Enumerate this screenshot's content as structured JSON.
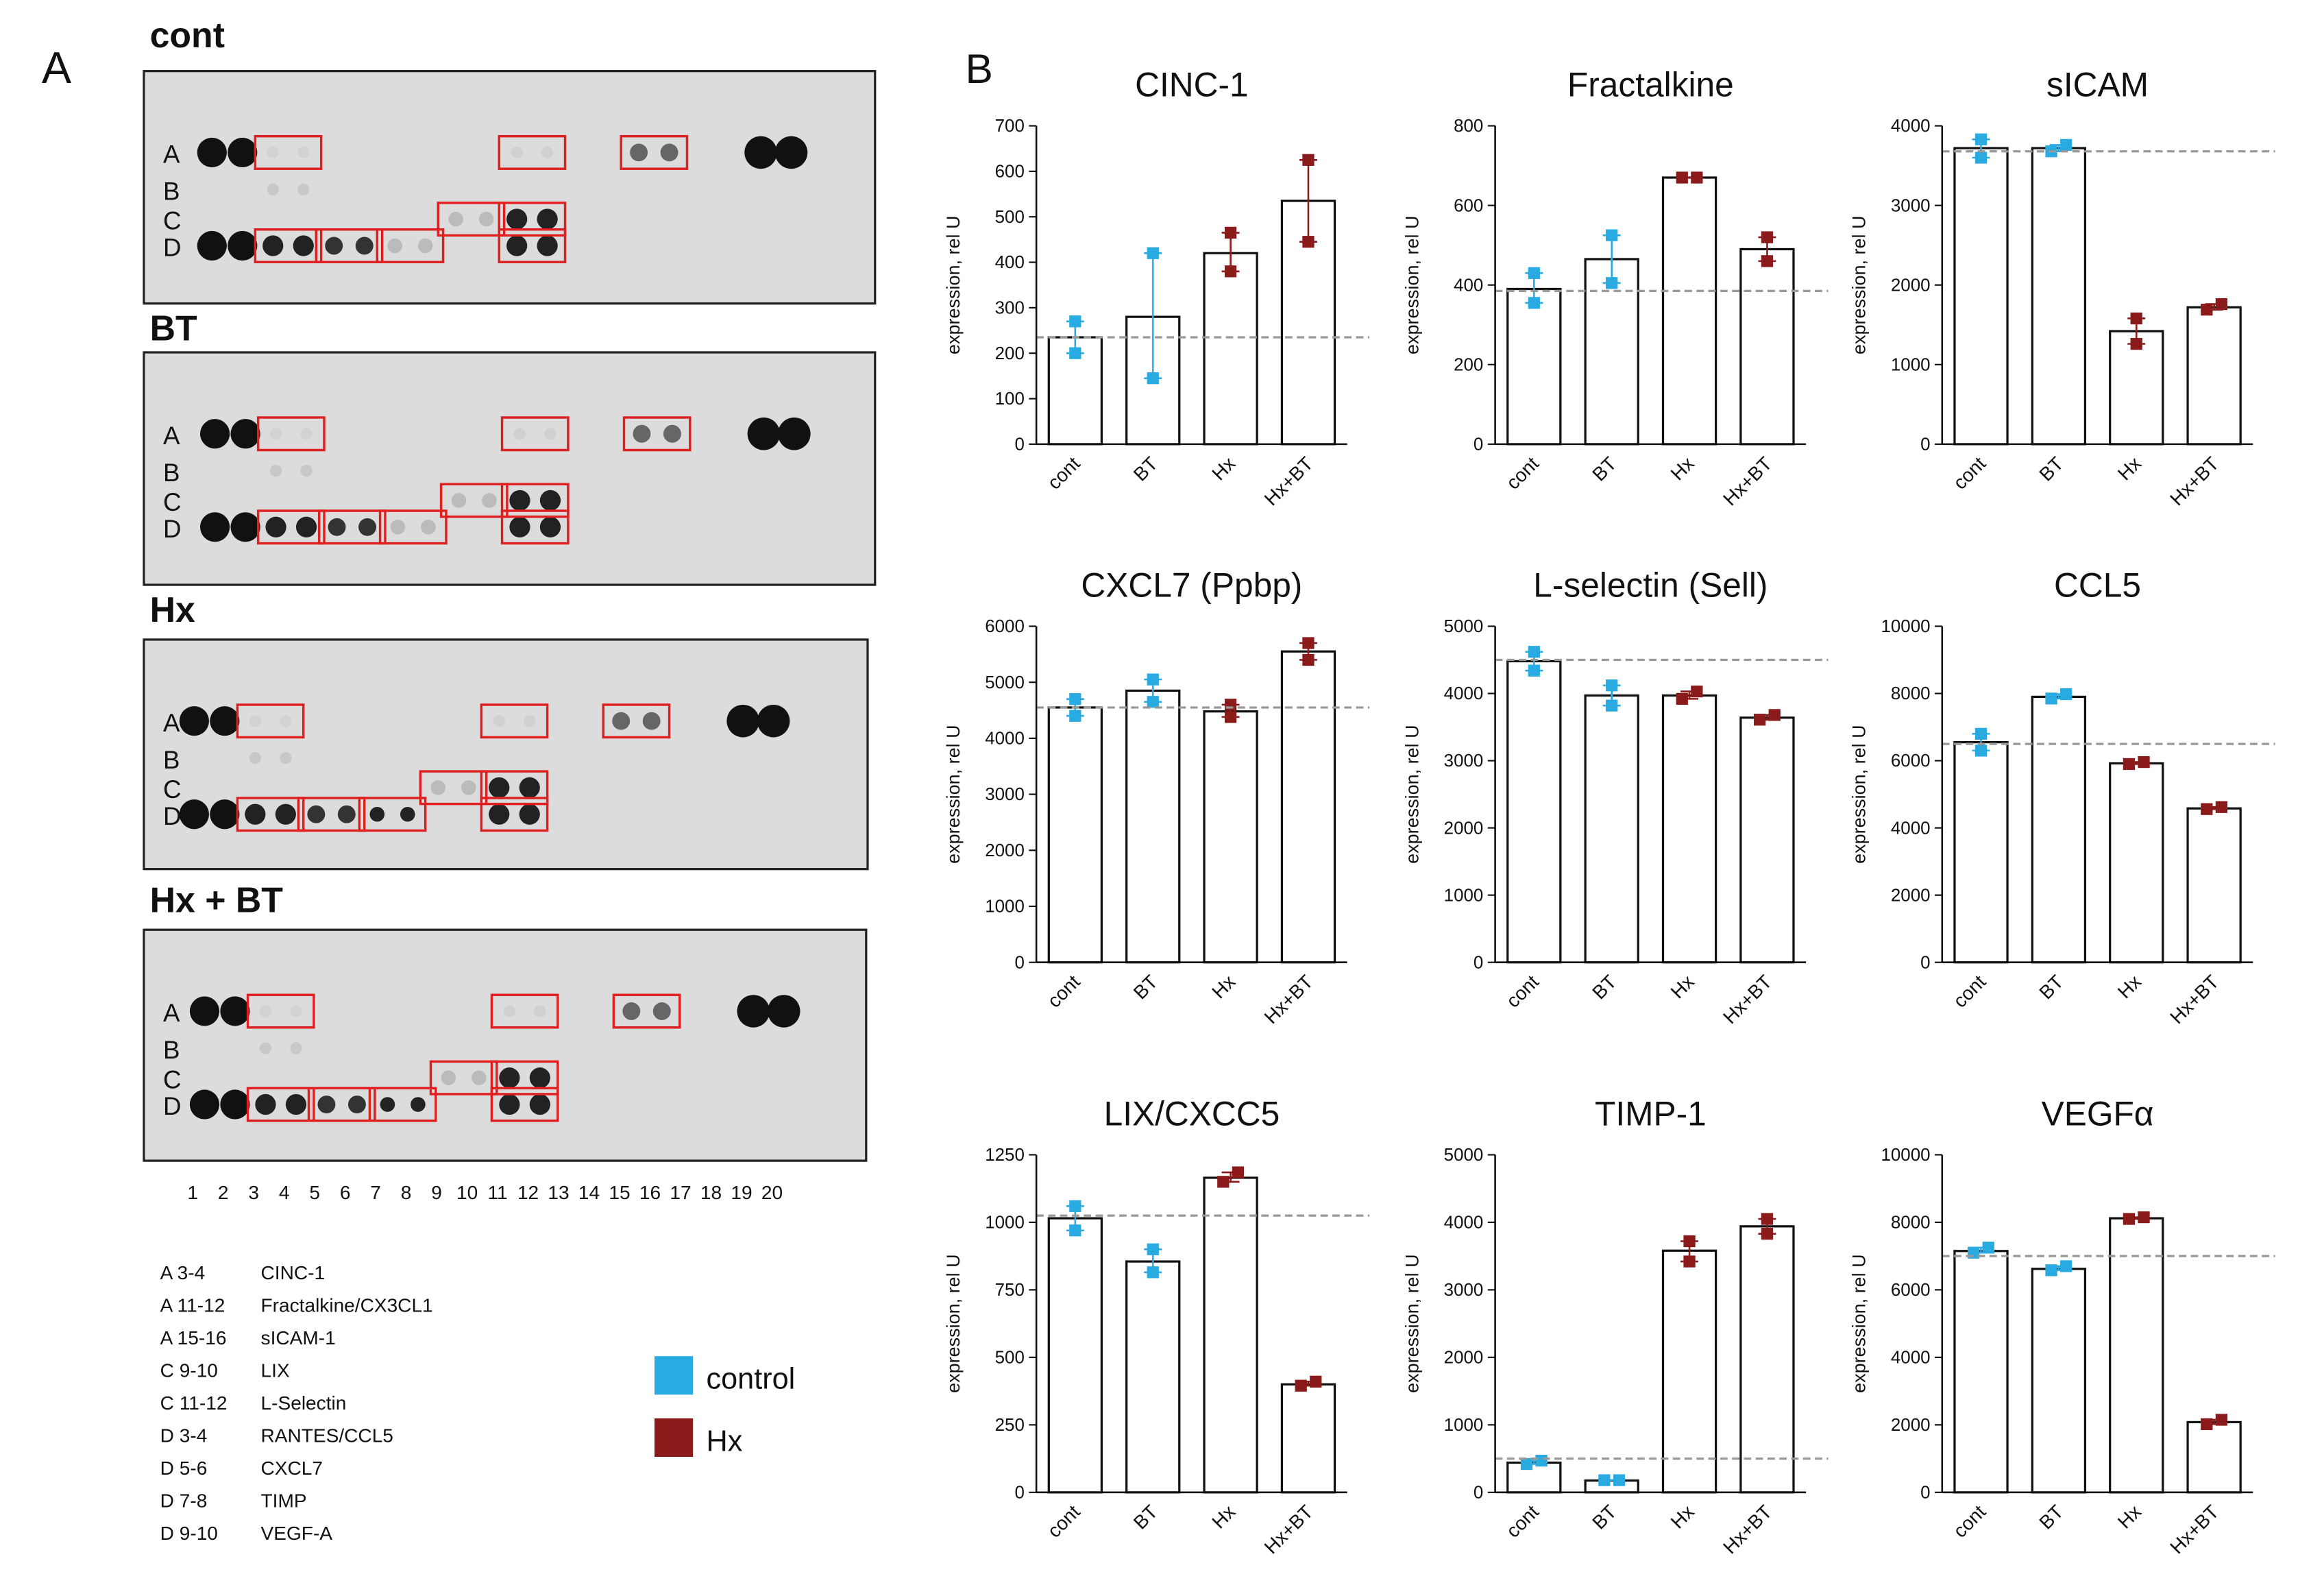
{
  "panel_a": {
    "label": "A",
    "blots": [
      "cont",
      "BT",
      "Hx",
      "Hx + BT"
    ],
    "row_labels": [
      "A",
      "B",
      "C",
      "D"
    ],
    "column_numbers": [
      1,
      2,
      3,
      4,
      5,
      6,
      7,
      8,
      9,
      10,
      11,
      12,
      13,
      14,
      15,
      16,
      17,
      18,
      19,
      20
    ],
    "key": [
      {
        "spot": "A 3-4",
        "name": "CINC-1"
      },
      {
        "spot": "A 11-12",
        "name": "Fractalkine/CX3CL1"
      },
      {
        "spot": "A 15-16",
        "name": "sICAM-1"
      },
      {
        "spot": "C 9-10",
        "name": "LIX"
      },
      {
        "spot": "C 11-12",
        "name": "L-Selectin"
      },
      {
        "spot": "D 3-4",
        "name": "RANTES/CCL5"
      },
      {
        "spot": "D 5-6",
        "name": "CXCL7"
      },
      {
        "spot": "D 7-8",
        "name": "TIMP"
      },
      {
        "spot": "D 9-10",
        "name": "VEGF-A"
      }
    ]
  },
  "legend": [
    {
      "name": "control",
      "color": "#29abe2"
    },
    {
      "name": "Hx",
      "color": "#8b1a1a"
    }
  ],
  "panel_b_label": "B",
  "chart_data": [
    {
      "type": "bar",
      "title": "CINC-1",
      "ylabel": "expression, rel U",
      "categories": [
        "cont",
        "BT",
        "Hx",
        "Hx+BT"
      ],
      "values": [
        235,
        280,
        420,
        535
      ],
      "replicates": [
        [
          270,
          200
        ],
        [
          420,
          145
        ],
        [
          465,
          380
        ],
        [
          625,
          445
        ]
      ],
      "point_colors": [
        "#29abe2",
        "#29abe2",
        "#8b1a1a",
        "#8b1a1a"
      ],
      "reference_line": 235,
      "ylim": [
        0,
        700
      ],
      "yticks": [
        0,
        100,
        200,
        300,
        400,
        500,
        600,
        700
      ]
    },
    {
      "type": "bar",
      "title": "Fractalkine",
      "ylabel": "expression, rel U",
      "categories": [
        "cont",
        "BT",
        "Hx",
        "Hx+BT"
      ],
      "values": [
        390,
        465,
        670,
        490
      ],
      "replicates": [
        [
          430,
          355
        ],
        [
          525,
          405
        ],
        [
          670,
          670
        ],
        [
          520,
          460
        ]
      ],
      "point_colors": [
        "#29abe2",
        "#29abe2",
        "#8b1a1a",
        "#8b1a1a"
      ],
      "reference_line": 385,
      "ylim": [
        0,
        800
      ],
      "yticks": [
        0,
        200,
        400,
        600,
        800
      ]
    },
    {
      "type": "bar",
      "title": "sICAM",
      "ylabel": "expression, rel U",
      "categories": [
        "cont",
        "BT",
        "Hx",
        "Hx+BT"
      ],
      "values": [
        3720,
        3720,
        1420,
        1720
      ],
      "replicates": [
        [
          3830,
          3600
        ],
        [
          3680,
          3760
        ],
        [
          1580,
          1260
        ],
        [
          1690,
          1760
        ]
      ],
      "point_colors": [
        "#29abe2",
        "#29abe2",
        "#8b1a1a",
        "#8b1a1a"
      ],
      "reference_line": 3680,
      "ylim": [
        0,
        4000
      ],
      "yticks": [
        0,
        1000,
        2000,
        3000,
        4000
      ]
    },
    {
      "type": "bar",
      "title": "CXCL7 (Ppbp)",
      "ylabel": "expression, rel U",
      "categories": [
        "cont",
        "BT",
        "Hx",
        "Hx+BT"
      ],
      "values": [
        4550,
        4850,
        4480,
        5550
      ],
      "replicates": [
        [
          4700,
          4400
        ],
        [
          5050,
          4650
        ],
        [
          4600,
          4380
        ],
        [
          5700,
          5400
        ]
      ],
      "point_colors": [
        "#29abe2",
        "#29abe2",
        "#8b1a1a",
        "#8b1a1a"
      ],
      "reference_line": 4550,
      "ylim": [
        0,
        6000
      ],
      "yticks": [
        0,
        1000,
        2000,
        3000,
        4000,
        5000,
        6000
      ]
    },
    {
      "type": "bar",
      "title": "L-selectin (Sell)",
      "ylabel": "expression, rel U",
      "categories": [
        "cont",
        "BT",
        "Hx",
        "Hx+BT"
      ],
      "values": [
        4480,
        3970,
        3970,
        3640
      ],
      "replicates": [
        [
          4620,
          4340
        ],
        [
          4120,
          3820
        ],
        [
          3920,
          4030
        ],
        [
          3610,
          3680
        ]
      ],
      "point_colors": [
        "#29abe2",
        "#29abe2",
        "#8b1a1a",
        "#8b1a1a"
      ],
      "reference_line": 4500,
      "ylim": [
        0,
        5000
      ],
      "yticks": [
        0,
        1000,
        2000,
        3000,
        4000,
        5000
      ]
    },
    {
      "type": "bar",
      "title": "CCL5",
      "ylabel": "expression, rel U",
      "categories": [
        "cont",
        "BT",
        "Hx",
        "Hx+BT"
      ],
      "values": [
        6550,
        7900,
        5920,
        4580
      ],
      "replicates": [
        [
          6800,
          6300
        ],
        [
          7850,
          7980
        ],
        [
          5900,
          5960
        ],
        [
          4560,
          4620
        ]
      ],
      "point_colors": [
        "#29abe2",
        "#29abe2",
        "#8b1a1a",
        "#8b1a1a"
      ],
      "reference_line": 6500,
      "ylim": [
        0,
        10000
      ],
      "yticks": [
        0,
        2000,
        4000,
        6000,
        8000,
        10000
      ]
    },
    {
      "type": "bar",
      "title": "LIX/CXCC5",
      "ylabel": "expression, rel U",
      "categories": [
        "cont",
        "BT",
        "Hx",
        "Hx+BT"
      ],
      "values": [
        1015,
        855,
        1165,
        400
      ],
      "replicates": [
        [
          1060,
          970
        ],
        [
          900,
          815
        ],
        [
          1150,
          1185
        ],
        [
          395,
          410
        ]
      ],
      "point_colors": [
        "#29abe2",
        "#29abe2",
        "#8b1a1a",
        "#8b1a1a"
      ],
      "reference_line": 1025,
      "ylim": [
        0,
        1250
      ],
      "yticks": [
        0,
        250,
        500,
        750,
        1000,
        1250
      ]
    },
    {
      "type": "bar",
      "title": "TIMP-1",
      "ylabel": "expression, rel U",
      "categories": [
        "cont",
        "BT",
        "Hx",
        "Hx+BT"
      ],
      "values": [
        440,
        175,
        3580,
        3940
      ],
      "replicates": [
        [
          420,
          470
        ],
        [
          180,
          180
        ],
        [
          3720,
          3420
        ],
        [
          4050,
          3830
        ]
      ],
      "point_colors": [
        "#29abe2",
        "#29abe2",
        "#8b1a1a",
        "#8b1a1a"
      ],
      "reference_line": 500,
      "ylim": [
        0,
        5000
      ],
      "yticks": [
        0,
        1000,
        2000,
        3000,
        4000,
        5000
      ]
    },
    {
      "type": "bar",
      "title": "VEGFα",
      "ylabel": "expression, rel U",
      "categories": [
        "cont",
        "BT",
        "Hx",
        "Hx+BT"
      ],
      "values": [
        7150,
        6620,
        8120,
        2080
      ],
      "replicates": [
        [
          7100,
          7250
        ],
        [
          6580,
          6700
        ],
        [
          8100,
          8150
        ],
        [
          2020,
          2150
        ]
      ],
      "point_colors": [
        "#29abe2",
        "#29abe2",
        "#8b1a1a",
        "#8b1a1a"
      ],
      "reference_line": 7000,
      "ylim": [
        0,
        10000
      ],
      "yticks": [
        0,
        2000,
        4000,
        6000,
        8000,
        10000
      ]
    }
  ]
}
